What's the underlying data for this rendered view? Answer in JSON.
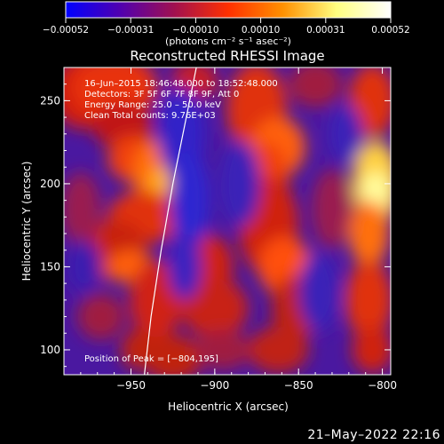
{
  "chart_data": {
    "type": "heatmap",
    "title": "Reconstructed RHESSI Image",
    "xlabel": "Heliocentric X (arcsec)",
    "ylabel": "Heliocentric Y (arcsec)",
    "xlim": [
      -990,
      -795
    ],
    "ylim": [
      85,
      270
    ],
    "x_ticks": [
      -950,
      -900,
      -850,
      -800
    ],
    "x_tick_labels": [
      "−950",
      "−900",
      "−850",
      "−800"
    ],
    "y_ticks": [
      100,
      150,
      200,
      250
    ],
    "y_tick_labels": [
      "100",
      "150",
      "200",
      "250"
    ],
    "colorbar": {
      "range": [
        -0.00052,
        0.00052
      ],
      "tick_labels": [
        "−0.00052",
        "−0.00031",
        "−0.00010",
        "0.00010",
        "0.00031",
        "0.00052"
      ],
      "units_label": "(photons cm⁻² s⁻¹ asec⁻²)",
      "colormap": [
        "#0000ff",
        "#5000b0",
        "#a01050",
        "#ff3000",
        "#ff9000",
        "#ffff80",
        "#ffffff"
      ]
    },
    "annotations": [
      "16–Jun–2015 18:46:48.000 to 18:52:48.000",
      "Detectors: 3F 5F 6F 7F 8F 9F, Att 0",
      "Energy Range: 25.0 – 50.0 keV",
      "Clean     Total counts: 9.76E+03"
    ],
    "peak_label": "Position of Peak = [−804,195]",
    "peak_position": [
      -804,
      195
    ],
    "limb_curve": {
      "x": [
        -942,
        -938,
        -932,
        -925,
        -918,
        -911
      ],
      "y": [
        85,
        120,
        160,
        200,
        235,
        270
      ]
    },
    "grid": false
  },
  "footer": {
    "date": "21–May–2022 22:16"
  }
}
